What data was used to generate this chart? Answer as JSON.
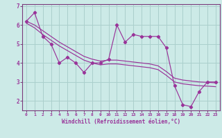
{
  "x": [
    0,
    1,
    2,
    3,
    4,
    5,
    6,
    7,
    8,
    9,
    10,
    11,
    12,
    13,
    14,
    15,
    16,
    17,
    18,
    19,
    20,
    21,
    22,
    23
  ],
  "y_main": [
    6.2,
    6.65,
    5.4,
    5.0,
    4.0,
    4.3,
    4.0,
    3.5,
    4.0,
    4.0,
    4.2,
    6.0,
    5.1,
    5.5,
    5.4,
    5.4,
    5.4,
    4.8,
    2.8,
    1.8,
    1.7,
    2.5,
    3.0,
    3.0
  ],
  "y_upper": [
    6.2,
    6.0,
    5.7,
    5.4,
    5.1,
    4.85,
    4.6,
    4.35,
    4.2,
    4.1,
    4.15,
    4.15,
    4.1,
    4.05,
    4.0,
    3.95,
    3.85,
    3.55,
    3.2,
    3.1,
    3.05,
    3.0,
    2.98,
    2.95
  ],
  "y_lower": [
    6.1,
    5.85,
    5.5,
    5.2,
    4.9,
    4.65,
    4.4,
    4.15,
    4.0,
    3.9,
    3.95,
    3.95,
    3.9,
    3.85,
    3.8,
    3.75,
    3.65,
    3.35,
    3.0,
    2.9,
    2.85,
    2.8,
    2.78,
    2.75
  ],
  "background_color": "#cceae7",
  "grid_color": "#aacfcc",
  "line_color": "#993399",
  "spine_color": "#7a3a7a",
  "xlabel": "Windchill (Refroidissement éolien,°C)",
  "ylim": [
    1.5,
    7.1
  ],
  "xlim": [
    -0.5,
    23.5
  ],
  "yticks": [
    2,
    3,
    4,
    5,
    6,
    7
  ],
  "xticks": [
    0,
    1,
    2,
    3,
    4,
    5,
    6,
    7,
    8,
    9,
    10,
    11,
    12,
    13,
    14,
    15,
    16,
    17,
    18,
    19,
    20,
    21,
    22,
    23
  ]
}
